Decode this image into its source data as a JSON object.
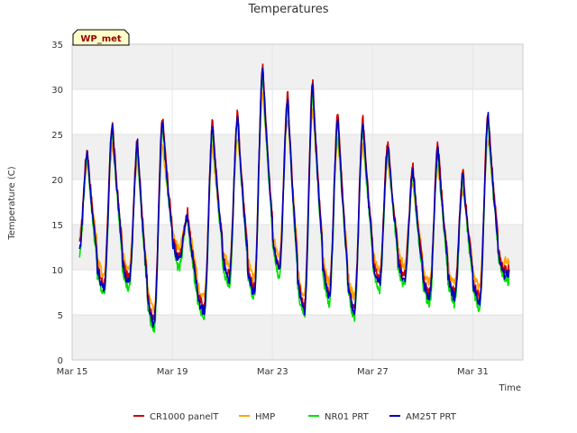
{
  "chart_data": {
    "type": "line",
    "title": "Temperatures",
    "xlabel": "Time",
    "ylabel": "Temperature (C)",
    "ylim": [
      0,
      35
    ],
    "yticks": [
      0,
      5,
      10,
      15,
      20,
      25,
      30,
      35
    ],
    "xlim": [
      0,
      18.0
    ],
    "xticks": [
      {
        "label": "Mar 15",
        "value": 0
      },
      {
        "label": "Mar 19",
        "value": 4
      },
      {
        "label": "Mar 23",
        "value": 8
      },
      {
        "label": "Mar 27",
        "value": 12
      },
      {
        "label": "Mar 31",
        "value": 16
      }
    ],
    "station_label": "WP_met",
    "legend_position": "bottom",
    "grid": "horizontal bands",
    "band_color": "#f0f0f0",
    "day_minmax": [
      [
        12,
        23
      ],
      [
        8,
        26
      ],
      [
        8.5,
        24
      ],
      [
        4,
        26.5
      ],
      [
        11,
        16
      ],
      [
        5.5,
        26
      ],
      [
        9,
        27
      ],
      [
        7.5,
        32.5
      ],
      [
        10,
        29
      ],
      [
        5.5,
        30.5
      ],
      [
        7,
        27
      ],
      [
        5.5,
        26.5
      ],
      [
        8.5,
        24
      ],
      [
        9,
        21
      ],
      [
        7,
        23.5
      ],
      [
        7,
        20.5
      ],
      [
        6.5,
        27
      ],
      [
        9.5,
        9.5
      ]
    ],
    "series": [
      {
        "name": "CR1000 panelT",
        "color": "#d00000",
        "offset": 0.3,
        "peak_scale": 1.01,
        "min_offset": 0.2
      },
      {
        "name": "HMP",
        "color": "#ffa500",
        "offset": 0.0,
        "peak_scale": 0.88,
        "min_offset": 1.5
      },
      {
        "name": "NR01 PRT",
        "color": "#00e000",
        "offset": -0.2,
        "peak_scale": 0.98,
        "min_offset": -0.5
      },
      {
        "name": "AM25T PRT",
        "color": "#0000c0",
        "offset": 0.0,
        "peak_scale": 1.0,
        "min_offset": 0.0
      }
    ]
  }
}
